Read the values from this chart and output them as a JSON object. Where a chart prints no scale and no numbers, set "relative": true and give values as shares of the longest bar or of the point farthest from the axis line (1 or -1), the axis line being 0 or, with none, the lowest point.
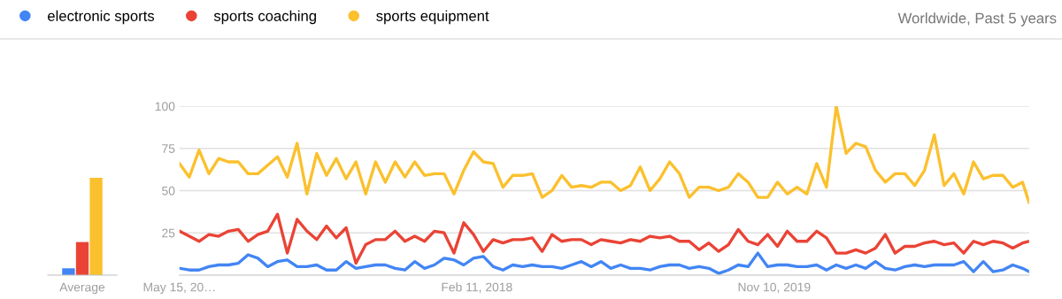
{
  "chart_data": [
    {
      "type": "bar",
      "relative": true,
      "categories": [
        "Average"
      ],
      "series": [
        {
          "color": "#4285f4",
          "values": [
            0.07
          ]
        },
        {
          "color": "#ea4335",
          "values": [
            0.34
          ]
        },
        {
          "color": "#fbc02d",
          "values": [
            1
          ]
        }
      ]
    },
    {
      "type": "line",
      "legend": "top",
      "grid": "y",
      "annotations": [
        "Worldwide, Past 5 years"
      ],
      "x": [
        "2016-05-15",
        "2016-06-05",
        "2016-06-26",
        "2016-07-17",
        "2016-08-07",
        "2016-08-28",
        "2016-09-18",
        "2016-10-09",
        "2016-10-30",
        "2016-11-20",
        "2016-12-11",
        "2017-01-01",
        "2017-01-22",
        "2017-02-12",
        "2017-03-05",
        "2017-03-26",
        "2017-04-16",
        "2017-05-07",
        "2017-05-28",
        "2017-06-18",
        "2017-07-09",
        "2017-07-30",
        "2017-08-20",
        "2017-09-10",
        "2017-10-01",
        "2017-10-22",
        "2017-11-12",
        "2017-12-03",
        "2017-12-24",
        "2018-01-14",
        "2018-02-04",
        "2018-02-25",
        "2018-03-18",
        "2018-04-08",
        "2018-04-29",
        "2018-05-20",
        "2018-06-10",
        "2018-07-01",
        "2018-07-22",
        "2018-08-12",
        "2018-09-02",
        "2018-09-23",
        "2018-10-14",
        "2018-11-04",
        "2018-11-25",
        "2018-12-16",
        "2019-01-06",
        "2019-01-27",
        "2019-02-17",
        "2019-03-10",
        "2019-03-31",
        "2019-04-21",
        "2019-05-12",
        "2019-06-02",
        "2019-06-23",
        "2019-07-14",
        "2019-08-04",
        "2019-08-25",
        "2019-09-15",
        "2019-10-06",
        "2019-10-27",
        "2019-11-17",
        "2019-12-08",
        "2019-12-29",
        "2020-01-19",
        "2020-02-09",
        "2020-03-01",
        "2020-03-22",
        "2020-04-12",
        "2020-05-03",
        "2020-05-24",
        "2020-06-14",
        "2020-07-05",
        "2020-07-26",
        "2020-08-16",
        "2020-09-06",
        "2020-09-27",
        "2020-10-18",
        "2020-11-08",
        "2020-11-29",
        "2020-12-20",
        "2021-01-10",
        "2021-01-31",
        "2021-02-21",
        "2021-03-14",
        "2021-04-04",
        "2021-04-25",
        "2021-05-09"
      ],
      "xlim": [
        "2016-05-15",
        "2021-05-09"
      ],
      "xticks": [
        {
          "value": "2016-05-15",
          "label": "May 15, 20…"
        },
        {
          "value": "2018-02-11",
          "label": "Feb 11, 2018"
        },
        {
          "value": "2019-11-10",
          "label": "Nov 10, 2019"
        }
      ],
      "ylim": [
        0,
        100
      ],
      "yticks": [
        25,
        50,
        75,
        100
      ],
      "series": [
        {
          "name": "electronic sports",
          "color": "#4285f4",
          "values": [
            4,
            3,
            3,
            5,
            6,
            6,
            7,
            12,
            10,
            5,
            8,
            9,
            5,
            5,
            6,
            3,
            3,
            8,
            4,
            5,
            6,
            6,
            4,
            3,
            8,
            4,
            6,
            10,
            9,
            6,
            10,
            11,
            5,
            3,
            6,
            5,
            6,
            5,
            5,
            4,
            6,
            8,
            5,
            8,
            4,
            6,
            4,
            4,
            3,
            5,
            6,
            6,
            4,
            5,
            4,
            1,
            3,
            6,
            5,
            13,
            5,
            6,
            6,
            5,
            5,
            6,
            3,
            6,
            4,
            6,
            4,
            8,
            4,
            3,
            5,
            6,
            5,
            6,
            6,
            6,
            8,
            2,
            8,
            2,
            3,
            6,
            4,
            2
          ]
        },
        {
          "name": "sports coaching",
          "color": "#ea4335",
          "values": [
            26,
            23,
            20,
            24,
            23,
            26,
            27,
            20,
            24,
            26,
            36,
            13,
            33,
            26,
            21,
            29,
            22,
            28,
            7,
            18,
            21,
            21,
            26,
            20,
            23,
            20,
            26,
            25,
            13,
            31,
            24,
            14,
            21,
            19,
            21,
            21,
            22,
            14,
            24,
            20,
            21,
            21,
            18,
            21,
            20,
            19,
            21,
            20,
            23,
            22,
            23,
            20,
            20,
            15,
            19,
            14,
            18,
            27,
            20,
            18,
            24,
            17,
            26,
            20,
            20,
            26,
            22,
            13,
            13,
            15,
            13,
            16,
            24,
            13,
            17,
            17,
            19,
            20,
            18,
            19,
            13,
            20,
            18,
            20,
            19,
            16,
            19,
            20
          ]
        },
        {
          "name": "sports equipment",
          "color": "#fbc02d",
          "values": [
            66,
            58,
            74,
            60,
            69,
            67,
            67,
            60,
            60,
            65,
            70,
            58,
            78,
            48,
            72,
            59,
            69,
            57,
            67,
            48,
            67,
            55,
            67,
            58,
            67,
            59,
            60,
            60,
            48,
            62,
            73,
            67,
            66,
            52,
            59,
            59,
            60,
            46,
            50,
            59,
            52,
            53,
            52,
            55,
            55,
            50,
            53,
            64,
            50,
            57,
            67,
            60,
            46,
            52,
            52,
            50,
            52,
            60,
            55,
            46,
            46,
            55,
            48,
            52,
            48,
            66,
            52,
            100,
            72,
            78,
            76,
            62,
            55,
            60,
            60,
            53,
            62,
            83,
            53,
            60,
            48,
            67,
            57,
            59,
            59,
            52,
            55,
            43
          ]
        }
      ]
    }
  ]
}
